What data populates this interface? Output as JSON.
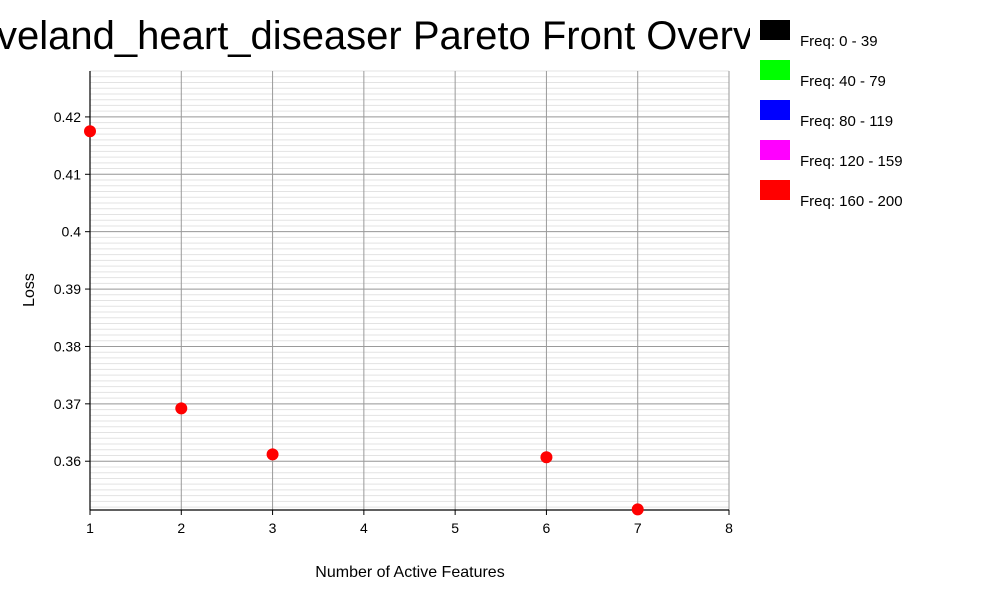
{
  "chart_data": {
    "type": "scatter",
    "title": "Cleveland_heart_diseaser Pareto Front Overview",
    "xlabel": "Number of Active Features",
    "ylabel": "Loss",
    "xlim": [
      1,
      8
    ],
    "ylim": [
      0.3515,
      0.428
    ],
    "x_ticks": [
      "1",
      "2",
      "3",
      "4",
      "5",
      "6",
      "7",
      "8"
    ],
    "y_ticks": [
      "0.36",
      "0.37",
      "0.38",
      "0.39",
      "0.4",
      "0.41",
      "0.42"
    ],
    "grid": true,
    "legend_position": "right",
    "legend": [
      {
        "label": "Freq: 0 - 39",
        "color": "#000000"
      },
      {
        "label": "Freq: 40 - 79",
        "color": "#00ff00"
      },
      {
        "label": "Freq: 80 - 119",
        "color": "#0000ff"
      },
      {
        "label": "Freq: 120 - 159",
        "color": "#ff00ff"
      },
      {
        "label": "Freq: 160 - 200",
        "color": "#ff0000"
      }
    ],
    "series": [
      {
        "color": "#ff0000",
        "points": [
          {
            "x": 1,
            "y": 0.4175
          },
          {
            "x": 2,
            "y": 0.3692
          },
          {
            "x": 3,
            "y": 0.3612
          },
          {
            "x": 6,
            "y": 0.3607
          },
          {
            "x": 7,
            "y": 0.3516
          }
        ]
      }
    ]
  }
}
